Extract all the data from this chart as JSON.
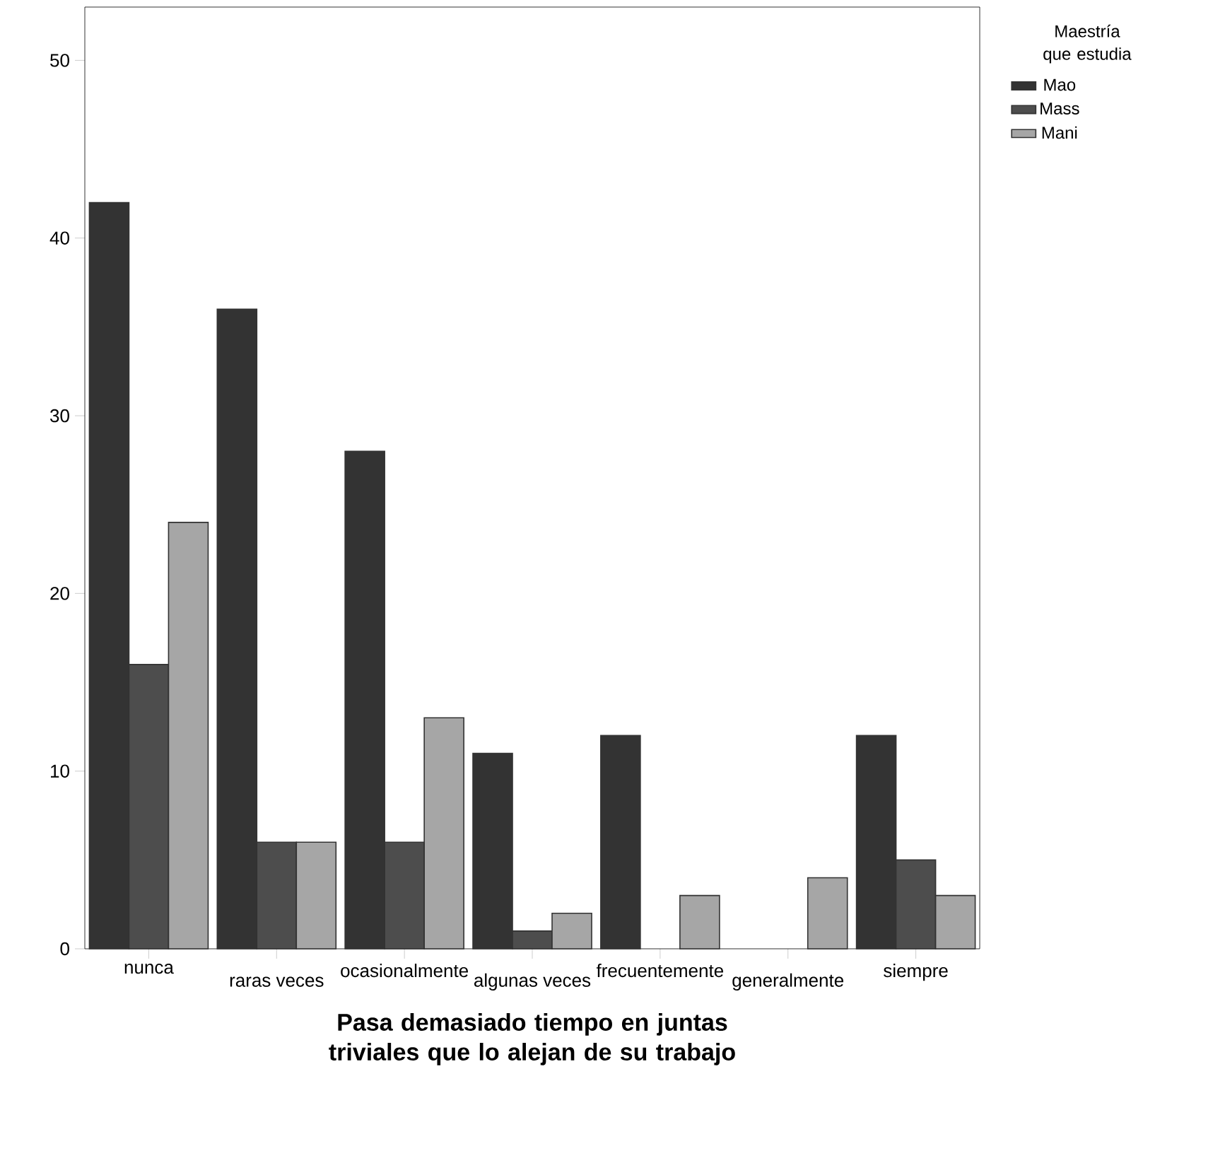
{
  "chart_data": {
    "type": "bar",
    "xlabel": "Pasa demasiado tiempo en juntas triviales que lo alejan de su trabajo",
    "legend_title": "Maestría que estudia",
    "legend": "top right",
    "categories": [
      "nunca",
      "raras veces",
      "ocasionalmente",
      "algunas veces",
      "frecuentemente",
      "generalmente",
      "siempre"
    ],
    "series": [
      {
        "name": "Mao",
        "color": "#333333",
        "values": [
          42,
          36,
          28,
          11,
          12,
          null,
          12
        ]
      },
      {
        "name": "Mass",
        "color": "#4d4d4d",
        "values": [
          16,
          6,
          6,
          1,
          null,
          null,
          5
        ]
      },
      {
        "name": "Mani",
        "color": "#a6a6a6",
        "values": [
          24,
          6,
          13,
          2,
          3,
          4,
          3
        ]
      }
    ],
    "ylim": [
      0,
      53
    ],
    "yticks": [
      0,
      10,
      20,
      30,
      40,
      50
    ]
  }
}
